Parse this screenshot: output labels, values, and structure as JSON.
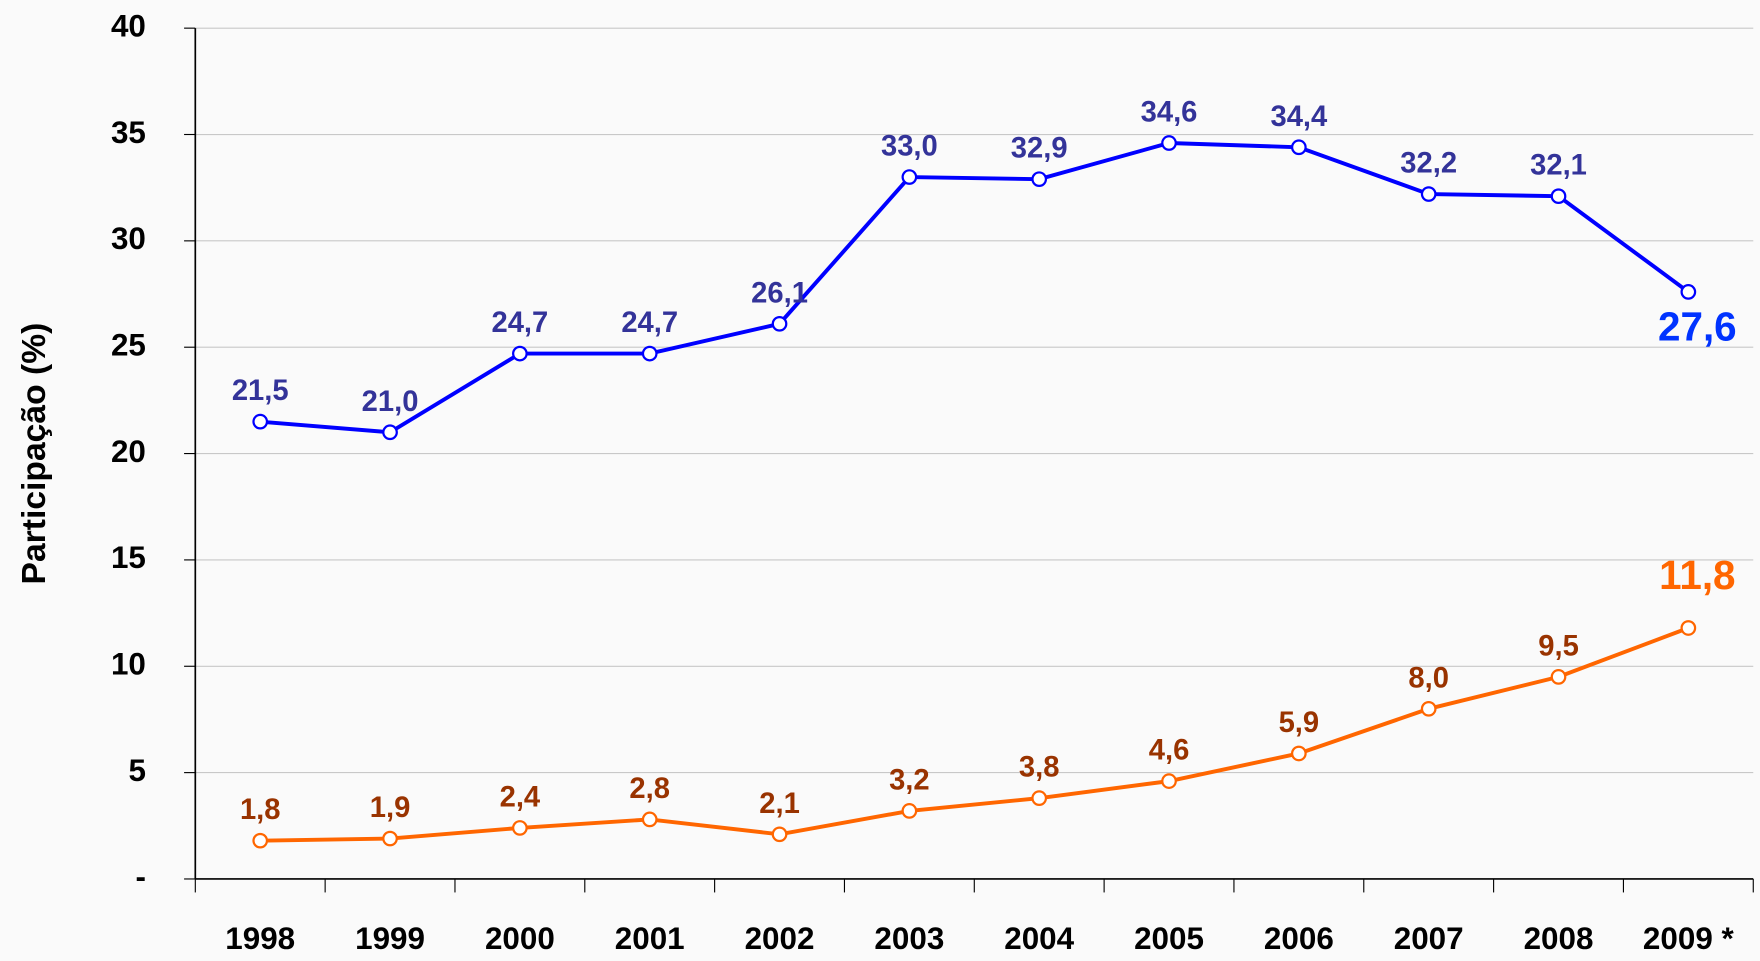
{
  "chart_data": {
    "type": "line",
    "y_label": "Participação (%)",
    "categories": [
      "1998",
      "1999",
      "2000",
      "2001",
      "2002",
      "2003",
      "2004",
      "2005",
      "2006",
      "2007",
      "2008",
      "2009 *"
    ],
    "series": [
      {
        "color": "#0000ff",
        "label_color": "#333399",
        "last_label_color": "#0033ff",
        "values": [
          21.5,
          21.0,
          24.7,
          24.7,
          26.1,
          33.0,
          32.9,
          34.6,
          34.4,
          32.2,
          32.1,
          27.6
        ],
        "value_labels": [
          "21,5",
          "21,0",
          "24,7",
          "24,7",
          "26,1",
          "33,0",
          "32,9",
          "34,6",
          "34,4",
          "32,2",
          "32,1",
          "27,6"
        ]
      },
      {
        "color": "#ff6600",
        "label_color": "#993300",
        "last_label_color": "#ff6600",
        "values": [
          1.8,
          1.9,
          2.4,
          2.8,
          2.1,
          3.2,
          3.8,
          4.6,
          5.9,
          8.0,
          9.5,
          11.8
        ],
        "value_labels": [
          "1,8",
          "1,9",
          "2,4",
          "2,8",
          "2,1",
          "3,2",
          "3,8",
          "4,6",
          "5,9",
          "8,0",
          "9,5",
          "11,8"
        ]
      }
    ],
    "ylim": [
      0,
      40
    ],
    "yticks": [
      {
        "value": 0,
        "label": "-"
      },
      5,
      10,
      15,
      20,
      25,
      30,
      35,
      40
    ],
    "grid": true
  }
}
